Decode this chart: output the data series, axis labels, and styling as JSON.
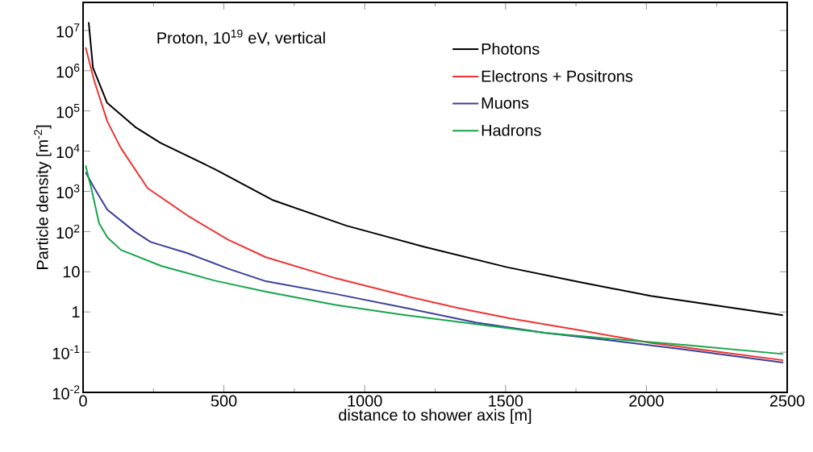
{
  "chart_data": {
    "type": "line",
    "xlabel": "distance to shower axis [m]",
    "ylabel": "Particle density [m$^{-2}$]",
    "annotations": [
      "Proton, 10$^{19}$ eV, vertical"
    ],
    "log": "y",
    "grid": false,
    "legend": "top right",
    "marker": "none",
    "line_style": "solid",
    "xlim": [
      0,
      2500
    ],
    "xticks": [
      0,
      500,
      1000,
      1500,
      2000,
      2500
    ],
    "ylim": [
      0.01,
      50000000
    ],
    "yticks": [
      {
        "value": 10000000,
        "label": "10$^{7}$"
      },
      {
        "value": 1000000,
        "label": "10$^{6}$"
      },
      {
        "value": 100000,
        "label": "10$^{5}$"
      },
      {
        "value": 10000,
        "label": "10$^{4}$"
      },
      {
        "value": 1000,
        "label": "10$^{3}$"
      },
      {
        "value": 100,
        "label": "10$^{2}$"
      },
      10,
      1,
      {
        "value": 0.1,
        "label": "10$^{-1}$"
      },
      {
        "value": 0.01,
        "label": "10$^{-2}$"
      }
    ],
    "series": [
      {
        "name": "Photons",
        "color": "#000000",
        "x": [
          20,
          35,
          85,
          185,
          275,
          470,
          675,
          935,
          1210,
          1505,
          1765,
          2015,
          2265,
          2485
        ],
        "values": [
          16000000,
          1200000,
          160000,
          40000,
          16000,
          3500,
          600,
          140,
          42,
          13,
          5.5,
          2.5,
          1.4,
          0.83
        ]
      },
      {
        "name": "Electrons + Positrons",
        "color": "#ee3333",
        "x": [
          9,
          40,
          86,
          134,
          229,
          371,
          514,
          649,
          897,
          1146,
          1331,
          1517,
          1766,
          2014,
          2263,
          2486
        ],
        "values": [
          3800000,
          550000,
          55000,
          12000,
          1200,
          250,
          63,
          23,
          6.9,
          2.5,
          1.26,
          0.69,
          0.35,
          0.17,
          0.1,
          0.063
        ]
      },
      {
        "name": "Muons",
        "color": "#3a3f9a",
        "x": [
          9,
          40,
          86,
          183,
          240,
          371,
          514,
          649,
          897,
          1146,
          1394,
          1643,
          1891,
          2140,
          2486
        ],
        "values": [
          3000,
          1200,
          350,
          100,
          55,
          29,
          12,
          5.8,
          2.8,
          1.26,
          0.55,
          0.3,
          0.19,
          0.115,
          0.055
        ]
      },
      {
        "name": "Hadrons",
        "color": "#16a54a",
        "x": [
          9,
          29,
          57,
          86,
          134,
          277,
          468,
          649,
          897,
          1146,
          1394,
          1643,
          1891,
          2140,
          2486
        ],
        "values": [
          4400,
          1200,
          160,
          72,
          35,
          14,
          6,
          3.2,
          1.5,
          0.83,
          0.5,
          0.3,
          0.21,
          0.15,
          0.09
        ]
      }
    ]
  }
}
